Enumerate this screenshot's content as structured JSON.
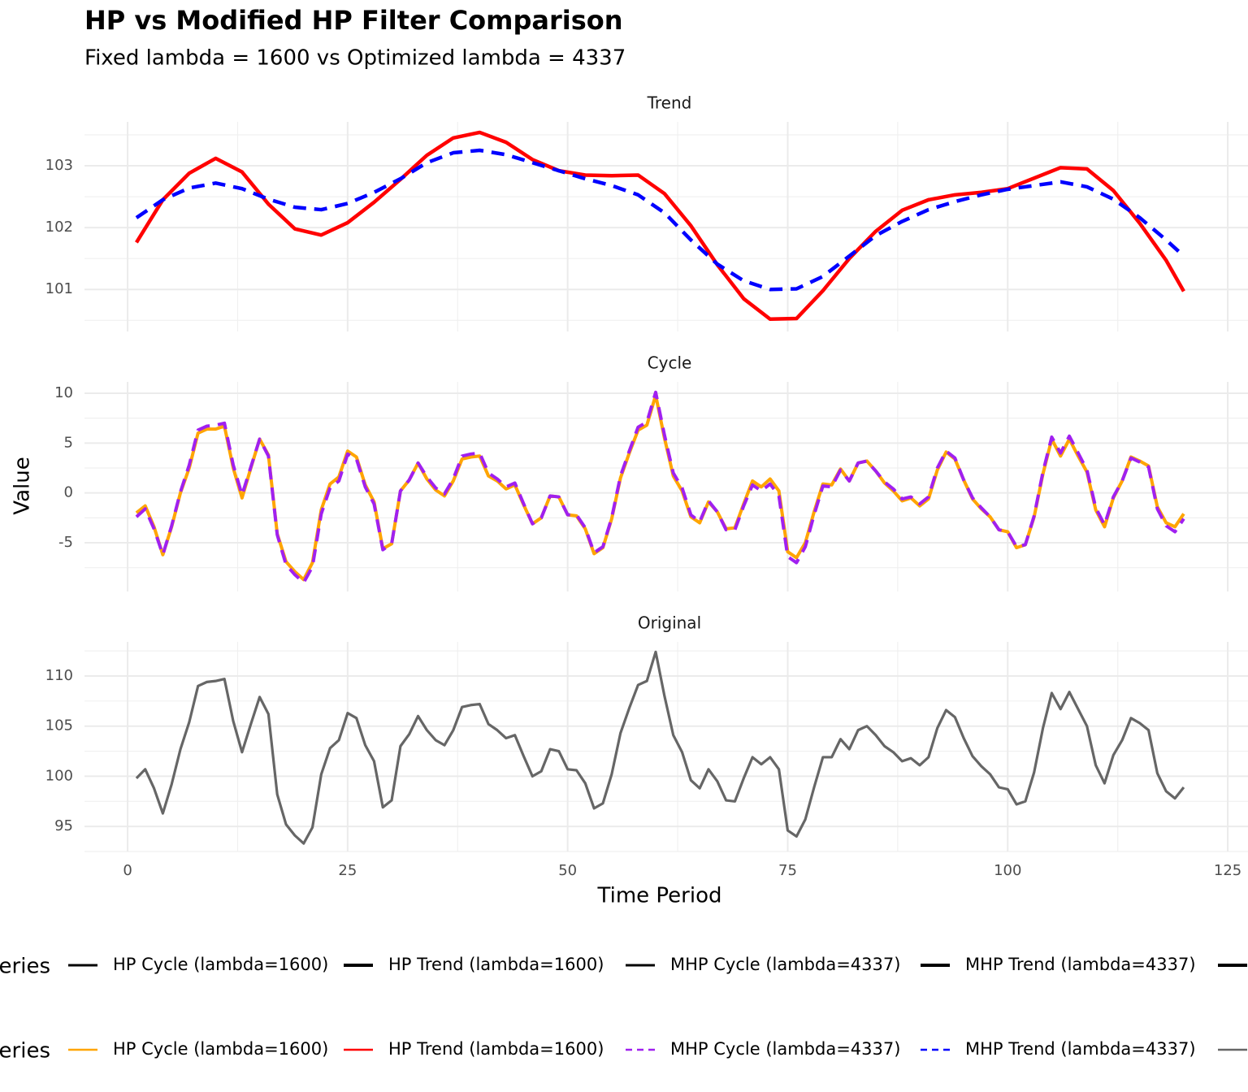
{
  "title": "HP vs Modified HP Filter Comparison",
  "subtitle": "Fixed lambda = 1600 vs Optimized lambda = 4337",
  "x_label": "Time Period",
  "y_label": "Value",
  "legend": {
    "title": "Series",
    "entries": [
      "HP Cycle (lambda=1600)",
      "HP Trend (lambda=1600)",
      "MHP Cycle (lambda=4337)",
      "MHP Trend (lambda=4337)"
    ]
  },
  "chart_data": [
    {
      "type": "line",
      "title": "Trend",
      "x": [
        1,
        4,
        7,
        10,
        13,
        16,
        19,
        22,
        25,
        28,
        31,
        34,
        37,
        40,
        43,
        46,
        49,
        52,
        55,
        58,
        61,
        64,
        67,
        70,
        73,
        76,
        79,
        82,
        85,
        88,
        91,
        94,
        97,
        100,
        103,
        106,
        109,
        112,
        115,
        118,
        120
      ],
      "series": [
        {
          "name": "HP Trend (lambda=1600)",
          "color": "#ff0000",
          "dash": false,
          "values": [
            101.76,
            102.45,
            102.88,
            103.12,
            102.9,
            102.38,
            101.98,
            101.88,
            102.08,
            102.41,
            102.78,
            103.17,
            103.45,
            103.54,
            103.38,
            103.1,
            102.92,
            102.85,
            102.84,
            102.85,
            102.55,
            102.03,
            101.4,
            100.85,
            100.52,
            100.53,
            100.98,
            101.5,
            101.94,
            102.28,
            102.45,
            102.53,
            102.57,
            102.63,
            102.8,
            102.97,
            102.95,
            102.6,
            102.07,
            101.47,
            100.97
          ]
        },
        {
          "name": "MHP Trend (lambda=4337)",
          "color": "#0000ff",
          "dash": true,
          "values": [
            102.16,
            102.45,
            102.64,
            102.72,
            102.63,
            102.46,
            102.33,
            102.29,
            102.39,
            102.57,
            102.79,
            103.05,
            103.21,
            103.25,
            103.18,
            103.05,
            102.92,
            102.79,
            102.68,
            102.53,
            102.24,
            101.8,
            101.41,
            101.14,
            101.0,
            101.01,
            101.21,
            101.54,
            101.87,
            102.1,
            102.29,
            102.42,
            102.53,
            102.62,
            102.68,
            102.74,
            102.66,
            102.46,
            102.16,
            101.8,
            101.54
          ]
        }
      ],
      "xlim": [
        -4.9,
        127.3
      ],
      "xticks": [
        0,
        25,
        50,
        75,
        100,
        125
      ],
      "ylim": [
        100.32,
        103.71
      ],
      "yticks": [
        101,
        102,
        103
      ],
      "grid": true
    },
    {
      "type": "line",
      "title": "Cycle",
      "x": [
        1,
        2,
        3,
        4,
        5,
        6,
        7,
        8,
        9,
        10,
        11,
        12,
        13,
        14,
        15,
        16,
        17,
        18,
        19,
        20,
        21,
        22,
        23,
        24,
        25,
        26,
        27,
        28,
        29,
        30,
        31,
        32,
        33,
        34,
        35,
        36,
        37,
        38,
        39,
        40,
        41,
        42,
        43,
        44,
        45,
        46,
        47,
        48,
        49,
        50,
        51,
        52,
        53,
        54,
        55,
        56,
        57,
        58,
        59,
        60,
        61,
        62,
        63,
        64,
        65,
        66,
        67,
        68,
        69,
        70,
        71,
        72,
        73,
        74,
        75,
        76,
        77,
        78,
        79,
        80,
        81,
        82,
        83,
        84,
        85,
        86,
        87,
        88,
        89,
        90,
        91,
        92,
        93,
        94,
        95,
        96,
        97,
        98,
        99,
        100,
        101,
        102,
        103,
        104,
        105,
        106,
        107,
        108,
        109,
        110,
        111,
        112,
        113,
        114,
        115,
        116,
        117,
        118,
        119,
        120
      ],
      "series": [
        {
          "name": "HP Cycle (lambda=1600)",
          "color": "#ffa500",
          "dash": false,
          "values": [
            -2.0,
            -1.3,
            -3.4,
            -6.2,
            -3.4,
            0.0,
            2.5,
            6.0,
            6.4,
            6.4,
            6.7,
            2.5,
            -0.5,
            2.5,
            5.4,
            3.8,
            -4.1,
            -6.9,
            -7.9,
            -8.7,
            -7.0,
            -1.7,
            0.9,
            1.6,
            4.2,
            3.6,
            0.8,
            -0.9,
            -5.6,
            -5.1,
            0.2,
            1.3,
            3.0,
            1.4,
            0.3,
            -0.3,
            1.2,
            3.4,
            3.6,
            3.7,
            1.7,
            1.2,
            0.4,
            0.8,
            -1.2,
            -3.1,
            -2.5,
            -0.3,
            -0.4,
            -2.2,
            -2.3,
            -3.6,
            -6.1,
            -5.5,
            -2.6,
            1.5,
            4.0,
            6.3,
            6.8,
            9.8,
            5.5,
            1.7,
            0.2,
            -2.4,
            -3.0,
            -0.9,
            -1.9,
            -3.6,
            -3.5,
            -1.1,
            1.2,
            0.6,
            1.4,
            0.2,
            -5.9,
            -6.5,
            -5.0,
            -1.9,
            0.9,
            0.8,
            2.4,
            1.2,
            3.0,
            3.2,
            2.2,
            1.0,
            0.2,
            -0.8,
            -0.5,
            -1.3,
            -0.6,
            2.3,
            4.1,
            3.4,
            1.3,
            -0.6,
            -1.6,
            -2.4,
            -3.7,
            -3.9,
            -5.5,
            -5.2,
            -2.4,
            1.9,
            5.4,
            3.7,
            5.4,
            3.7,
            2.1,
            -1.7,
            -3.4,
            -0.5,
            1.2,
            3.6,
            3.2,
            2.7,
            -1.4,
            -3.0,
            -3.4,
            -2.1
          ]
        },
        {
          "name": "MHP Cycle (lambda=4337)",
          "color": "#a020f0",
          "dash": true,
          "values": [
            -2.4,
            -1.6,
            -3.6,
            -6.2,
            -3.3,
            0.1,
            2.8,
            6.3,
            6.7,
            6.8,
            7.0,
            2.8,
            -0.2,
            2.6,
            5.4,
            3.7,
            -4.2,
            -7.2,
            -8.2,
            -9.0,
            -7.4,
            -2.1,
            0.5,
            1.2,
            3.9,
            3.4,
            0.6,
            -1.1,
            -5.7,
            -5.1,
            0.2,
            1.3,
            3.0,
            1.6,
            0.5,
            -0.1,
            1.4,
            3.7,
            3.9,
            4.0,
            2.0,
            1.4,
            0.6,
            1.0,
            -1.1,
            -3.1,
            -2.5,
            -0.3,
            -0.4,
            -2.2,
            -2.2,
            -3.5,
            -6.0,
            -5.4,
            -2.5,
            1.7,
            4.2,
            6.6,
            7.1,
            10.1,
            5.8,
            2.0,
            0.5,
            -2.2,
            -2.9,
            -0.8,
            -1.9,
            -3.7,
            -3.7,
            -1.3,
            0.8,
            0.2,
            0.9,
            -0.3,
            -6.4,
            -7.0,
            -5.4,
            -2.2,
            0.7,
            0.6,
            2.3,
            1.2,
            3.0,
            3.2,
            2.2,
            1.1,
            0.4,
            -0.6,
            -0.4,
            -1.1,
            -0.4,
            2.5,
            4.2,
            3.5,
            1.3,
            -0.5,
            -1.5,
            -2.4,
            -3.7,
            -3.9,
            -5.4,
            -5.2,
            -2.3,
            2.1,
            5.6,
            4.0,
            5.7,
            4.0,
            2.3,
            -1.5,
            -3.2,
            -0.4,
            1.2,
            3.5,
            3.1,
            2.6,
            -1.6,
            -3.3,
            -3.9,
            -2.6
          ]
        }
      ],
      "xlim": [
        -4.9,
        127.3
      ],
      "xticks": [
        0,
        25,
        50,
        75,
        100,
        125
      ],
      "ylim": [
        -9.89,
        11.14
      ],
      "yticks": [
        -5,
        0,
        5,
        10
      ],
      "grid": true
    },
    {
      "type": "line",
      "title": "Original",
      "x": [
        1,
        2,
        3,
        4,
        5,
        6,
        7,
        8,
        9,
        10,
        11,
        12,
        13,
        14,
        15,
        16,
        17,
        18,
        19,
        20,
        21,
        22,
        23,
        24,
        25,
        26,
        27,
        28,
        29,
        30,
        31,
        32,
        33,
        34,
        35,
        36,
        37,
        38,
        39,
        40,
        41,
        42,
        43,
        44,
        45,
        46,
        47,
        48,
        49,
        50,
        51,
        52,
        53,
        54,
        55,
        56,
        57,
        58,
        59,
        60,
        61,
        62,
        63,
        64,
        65,
        66,
        67,
        68,
        69,
        70,
        71,
        72,
        73,
        74,
        75,
        76,
        77,
        78,
        79,
        80,
        81,
        82,
        83,
        84,
        85,
        86,
        87,
        88,
        89,
        90,
        91,
        92,
        93,
        94,
        95,
        96,
        97,
        98,
        99,
        100,
        101,
        102,
        103,
        104,
        105,
        106,
        107,
        108,
        109,
        110,
        111,
        112,
        113,
        114,
        115,
        116,
        117,
        118,
        119,
        120
      ],
      "series": [
        {
          "color": "#666666",
          "dash": false,
          "values": [
            99.8,
            100.7,
            98.8,
            96.3,
            99.2,
            102.7,
            105.4,
            109.0,
            109.4,
            109.5,
            109.7,
            105.5,
            102.4,
            105.2,
            107.9,
            106.2,
            98.2,
            95.2,
            94.1,
            93.3,
            94.9,
            100.2,
            102.8,
            103.6,
            106.3,
            105.8,
            103.1,
            101.5,
            96.9,
            97.6,
            103.0,
            104.2,
            106.0,
            104.6,
            103.6,
            103.1,
            104.6,
            106.9,
            107.1,
            107.2,
            105.2,
            104.6,
            103.8,
            104.1,
            102.0,
            100.0,
            100.5,
            102.7,
            102.5,
            100.7,
            100.6,
            99.3,
            96.8,
            97.3,
            100.2,
            104.3,
            106.8,
            109.1,
            109.5,
            112.4,
            108.0,
            104.1,
            102.4,
            99.6,
            98.8,
            100.7,
            99.5,
            97.6,
            97.5,
            99.8,
            101.9,
            101.2,
            101.9,
            100.7,
            94.6,
            94.0,
            95.7,
            98.9,
            101.9,
            101.9,
            103.7,
            102.7,
            104.6,
            105.0,
            104.1,
            103.0,
            102.4,
            101.5,
            101.8,
            101.1,
            101.9,
            104.8,
            106.6,
            105.9,
            103.8,
            102.0,
            101.0,
            100.2,
            98.9,
            98.7,
            97.2,
            97.5,
            100.4,
            104.8,
            108.3,
            106.7,
            108.4,
            106.7,
            105.0,
            101.1,
            99.3,
            102.1,
            103.6,
            105.8,
            105.3,
            104.6,
            100.3,
            98.5,
            97.8,
            98.9
          ]
        }
      ],
      "xlim": [
        -4.9,
        127.3
      ],
      "xticks": [
        0,
        25,
        50,
        75,
        100,
        125
      ],
      "ylim": [
        92.5,
        113.4
      ],
      "yticks": [
        95,
        100,
        105,
        110
      ],
      "grid": true
    }
  ]
}
